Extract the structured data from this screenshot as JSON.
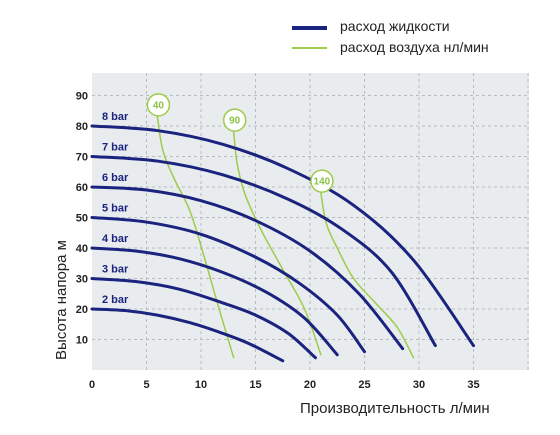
{
  "legend": {
    "liquid": "расход жидкости",
    "air": "расход воздуха нл/мин"
  },
  "colors": {
    "liquid": "#1a237e",
    "air": "#9ccc4a",
    "plot_bg": "#e9ecef",
    "grid": "#b8bcc0"
  },
  "chart_data": {
    "type": "line",
    "xlabel": "Производительность  л/мин",
    "ylabel": "Высота напора  м",
    "xlim": [
      0,
      40
    ],
    "ylim": [
      0,
      100
    ],
    "x_ticks": [
      "0",
      "5",
      "10",
      "15",
      "20",
      "25",
      "30",
      "35"
    ],
    "y_ticks": [
      "10",
      "20",
      "30",
      "40",
      "50",
      "60",
      "70",
      "80",
      "90"
    ],
    "grid": true,
    "legend_position": "top-right",
    "series": [
      {
        "name": "2 bar",
        "kind": "liquid",
        "points": [
          [
            0,
            20
          ],
          [
            3,
            19.5
          ],
          [
            6,
            18
          ],
          [
            9,
            15.5
          ],
          [
            12,
            12
          ],
          [
            14.5,
            8.5
          ],
          [
            17.5,
            3
          ]
        ]
      },
      {
        "name": "3 bar",
        "kind": "liquid",
        "points": [
          [
            0,
            30
          ],
          [
            4,
            29
          ],
          [
            8,
            26.5
          ],
          [
            12,
            22
          ],
          [
            15,
            18
          ],
          [
            18,
            12
          ],
          [
            20.5,
            4
          ]
        ]
      },
      {
        "name": "4 bar",
        "kind": "liquid",
        "points": [
          [
            0,
            40
          ],
          [
            4,
            39
          ],
          [
            8,
            36.5
          ],
          [
            12,
            32
          ],
          [
            16,
            25.5
          ],
          [
            19.5,
            17
          ],
          [
            22.5,
            5
          ]
        ]
      },
      {
        "name": "5 bar",
        "kind": "liquid",
        "points": [
          [
            0,
            50
          ],
          [
            5,
            48.5
          ],
          [
            10,
            44.5
          ],
          [
            15,
            37
          ],
          [
            19,
            28.5
          ],
          [
            22.5,
            18
          ],
          [
            25,
            6
          ]
        ]
      },
      {
        "name": "6 bar",
        "kind": "liquid",
        "points": [
          [
            0,
            60
          ],
          [
            5,
            59
          ],
          [
            10,
            55.5
          ],
          [
            15,
            49
          ],
          [
            20,
            39
          ],
          [
            24.5,
            25
          ],
          [
            28.5,
            7
          ]
        ]
      },
      {
        "name": "7 bar",
        "kind": "liquid",
        "points": [
          [
            0,
            70
          ],
          [
            6,
            68.5
          ],
          [
            12,
            64
          ],
          [
            18,
            56
          ],
          [
            23,
            46
          ],
          [
            27.5,
            32
          ],
          [
            31.5,
            8
          ]
        ]
      },
      {
        "name": "8 bar",
        "kind": "liquid",
        "points": [
          [
            0,
            80
          ],
          [
            6,
            78.5
          ],
          [
            12,
            74
          ],
          [
            18,
            66
          ],
          [
            24,
            54
          ],
          [
            29.5,
            36
          ],
          [
            35,
            8
          ]
        ]
      },
      {
        "name": "40",
        "kind": "air",
        "points": [
          [
            6,
            83
          ],
          [
            6.5,
            72
          ],
          [
            7.5,
            63
          ],
          [
            9,
            52
          ],
          [
            10.3,
            37
          ],
          [
            11.5,
            22
          ],
          [
            13,
            4
          ]
        ]
      },
      {
        "name": "90",
        "kind": "air",
        "points": [
          [
            13,
            78
          ],
          [
            13.3,
            68
          ],
          [
            14,
            58
          ],
          [
            15.5,
            46
          ],
          [
            17.5,
            33
          ],
          [
            19.5,
            20
          ],
          [
            21,
            5
          ]
        ]
      },
      {
        "name": "140",
        "kind": "air",
        "points": [
          [
            21,
            58
          ],
          [
            21.5,
            48
          ],
          [
            22.5,
            40
          ],
          [
            24,
            30
          ],
          [
            26,
            22
          ],
          [
            28,
            14
          ],
          [
            29.5,
            4
          ]
        ]
      }
    ]
  }
}
